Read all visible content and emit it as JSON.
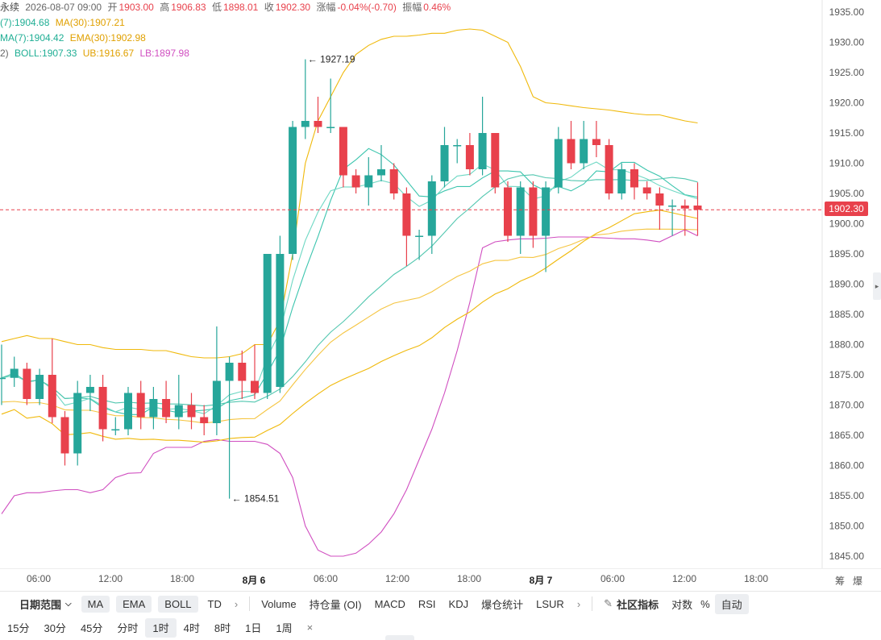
{
  "legend": {
    "line1": {
      "instrument": "永续",
      "datetime": "2026-08-07 09:00",
      "open_label": "开",
      "open": "1903.00",
      "high_label": "高",
      "high": "1906.83",
      "low_label": "低",
      "low": "1898.01",
      "close_label": "收",
      "close": "1902.30",
      "change_label": "涨幅",
      "change": "-0.04%(-0.70)",
      "amplitude_label": "振幅",
      "amplitude": "0.46%"
    },
    "line2": {
      "ma7": "(7):1904.68",
      "ma30": "MA(30):1907.21"
    },
    "line3": {
      "ema7": "MA(7):1904.42",
      "ema30": "EMA(30):1902.98"
    },
    "line4": {
      "prefix": "2)",
      "boll": "BOLL:1907.33",
      "ub": "UB:1916.67",
      "lb": "LB:1897.98"
    }
  },
  "colors": {
    "up": "#26a69a",
    "down": "#e8414c",
    "ma7": "#3cc5ae",
    "ema7": "#6fd8c4",
    "ma30": "#f0b90b",
    "ema30": "#f5c542",
    "ub": "#f0b90b",
    "lb": "#d04ec0",
    "text_yellow": "#e0a000",
    "text_pink": "#d04ec0",
    "text_green": "#1fae94",
    "text_red": "#e8414c"
  },
  "y_axis": {
    "ticks": [
      "1935.00",
      "1930.00",
      "1925.00",
      "1920.00",
      "1915.00",
      "1910.00",
      "1905.00",
      "1900.00",
      "1895.00",
      "1890.00",
      "1885.00",
      "1880.00",
      "1875.00",
      "1870.00",
      "1865.00",
      "1860.00",
      "1855.00",
      "1850.00",
      "1845.00"
    ],
    "current_price": "1902.30"
  },
  "annotations": {
    "high": "← 1927.19",
    "low": "← 1854.51"
  },
  "time_axis": {
    "labels": [
      "06:00",
      "12:00",
      "18:00",
      "8月 6",
      "06:00",
      "12:00",
      "18:00",
      "8月 7",
      "06:00",
      "12:00",
      "18:00"
    ],
    "corner": [
      "筹",
      "爆"
    ]
  },
  "toolbar": {
    "date_range": "日期范围",
    "indicators": [
      "MA",
      "EMA",
      "BOLL"
    ],
    "td": "TD",
    "sub_indicators": [
      "Volume",
      "持仓量 (OI)",
      "MACD",
      "RSI",
      "KDJ",
      "爆仓统计",
      "LSUR"
    ],
    "community": "社区指标",
    "log": "对数",
    "percent": "%",
    "auto": "自动"
  },
  "intervals": {
    "items": [
      "15分",
      "30分",
      "45分",
      "分时",
      "1时",
      "4时",
      "8时",
      "1日",
      "1周"
    ],
    "active": "1时",
    "close": "×"
  },
  "icons": [
    "chevron-down-icon",
    "chevron-right-icon",
    "edit-icon",
    "close-icon",
    "collapse-handle-icon"
  ],
  "chart_data": {
    "type": "candlestick",
    "timeframe": "1时",
    "current_price": 1902.3,
    "x_labels": [
      "06:00",
      "12:00",
      "18:00",
      "8月 6",
      "06:00",
      "12:00",
      "18:00",
      "8月 7",
      "06:00",
      "12:00",
      "18:00"
    ],
    "ylim": [
      1843,
      1937
    ],
    "max_marker": 1927.19,
    "min_marker": 1854.51,
    "candles": [
      [
        1874.5,
        1874.5,
        1880,
        1870
      ],
      [
        1874.5,
        1876,
        1878,
        1873
      ],
      [
        1876,
        1871,
        1877,
        1870
      ],
      [
        1871,
        1875,
        1876,
        1870
      ],
      [
        1875,
        1868,
        1881,
        1867
      ],
      [
        1868,
        1862,
        1869,
        1860
      ],
      [
        1862,
        1872,
        1874,
        1860
      ],
      [
        1872,
        1873,
        1875,
        1869
      ],
      [
        1873,
        1866,
        1875,
        1864
      ],
      [
        1866,
        1866,
        1868,
        1865
      ],
      [
        1866,
        1872,
        1873,
        1865
      ],
      [
        1872,
        1868,
        1874,
        1866
      ],
      [
        1868,
        1871,
        1873,
        1866
      ],
      [
        1871,
        1868,
        1874,
        1867
      ],
      [
        1868,
        1870,
        1875,
        1866
      ],
      [
        1870,
        1868,
        1872,
        1866
      ],
      [
        1868,
        1867,
        1870,
        1865
      ],
      [
        1867,
        1874,
        1883,
        1865
      ],
      [
        1874,
        1877,
        1878,
        1854.51
      ],
      [
        1877,
        1874,
        1879,
        1871
      ],
      [
        1874,
        1872,
        1880,
        1871
      ],
      [
        1872,
        1895,
        1884,
        1871
      ],
      [
        1873,
        1895,
        1898,
        1872
      ],
      [
        1895,
        1916,
        1917,
        1894
      ],
      [
        1916,
        1917,
        1927.19,
        1914
      ],
      [
        1917,
        1916,
        1921,
        1915
      ],
      [
        1916,
        1916,
        1924,
        1915
      ],
      [
        1916,
        1908,
        1916,
        1906
      ],
      [
        1908,
        1906,
        1909,
        1905
      ],
      [
        1906,
        1908,
        1911,
        1903
      ],
      [
        1908,
        1909,
        1913,
        1907
      ],
      [
        1909,
        1905,
        1910,
        1904
      ],
      [
        1905,
        1898,
        1906,
        1893
      ],
      [
        1898,
        1898,
        1899,
        1894
      ],
      [
        1898,
        1907,
        1908,
        1895
      ],
      [
        1907,
        1913,
        1916,
        1906
      ],
      [
        1913,
        1913,
        1914,
        1910
      ],
      [
        1913,
        1909,
        1915,
        1908
      ],
      [
        1909,
        1915,
        1921,
        1908
      ],
      [
        1915,
        1906,
        1915,
        1905
      ],
      [
        1906,
        1898,
        1907,
        1897
      ],
      [
        1898,
        1906,
        1907,
        1895
      ],
      [
        1906,
        1898,
        1907,
        1896
      ],
      [
        1898,
        1906,
        1907,
        1892
      ],
      [
        1906,
        1914,
        1916,
        1905
      ],
      [
        1914,
        1910,
        1917,
        1909
      ],
      [
        1910,
        1914,
        1917,
        1909
      ],
      [
        1914,
        1913,
        1917,
        1911
      ],
      [
        1913,
        1905,
        1914,
        1904
      ],
      [
        1905,
        1909,
        1910,
        1904
      ],
      [
        1909,
        1906,
        1910,
        1904
      ],
      [
        1906,
        1905,
        1907,
        1904
      ],
      [
        1905,
        1903,
        1906,
        1899
      ],
      [
        1903,
        1903,
        1904,
        1898
      ],
      [
        1903,
        1902.5,
        1904,
        1898
      ],
      [
        1903,
        1902.3,
        1906.83,
        1898.01
      ]
    ],
    "overlays": {
      "UB": [
        1880.5,
        1881,
        1881.5,
        1881,
        1881,
        1880.5,
        1880,
        1880,
        1879.5,
        1879.2,
        1879.2,
        1879.2,
        1879,
        1879,
        1878.5,
        1878,
        1877.8,
        1877.8,
        1878,
        1878.5,
        1880,
        1880,
        1884,
        1895,
        1910,
        1917,
        1921,
        1925,
        1928,
        1929.5,
        1930.5,
        1931,
        1931,
        1931.2,
        1931.5,
        1931.5,
        1932,
        1932.2,
        1932,
        1931,
        1930,
        1926,
        1921,
        1920,
        1919.8,
        1919.5,
        1919.2,
        1919,
        1918.8,
        1918.5,
        1918.2,
        1918,
        1918,
        1917.5,
        1917,
        1916.67
      ],
      "LB": [
        1852,
        1855,
        1855.5,
        1855.5,
        1855.8,
        1856,
        1856,
        1855.5,
        1856,
        1858,
        1858.7,
        1858.8,
        1862,
        1863,
        1863,
        1863,
        1864,
        1864.3,
        1864,
        1864,
        1864,
        1863.5,
        1862,
        1858,
        1850,
        1846,
        1845,
        1845,
        1845.5,
        1847,
        1849,
        1852,
        1856,
        1861,
        1866,
        1872,
        1879,
        1887,
        1896,
        1897,
        1897.3,
        1897.5,
        1897.5,
        1897.6,
        1897.8,
        1897.8,
        1897.8,
        1897.7,
        1897.6,
        1897.5,
        1897.5,
        1897.3,
        1897,
        1898,
        1899,
        1897.98
      ]
    }
  }
}
